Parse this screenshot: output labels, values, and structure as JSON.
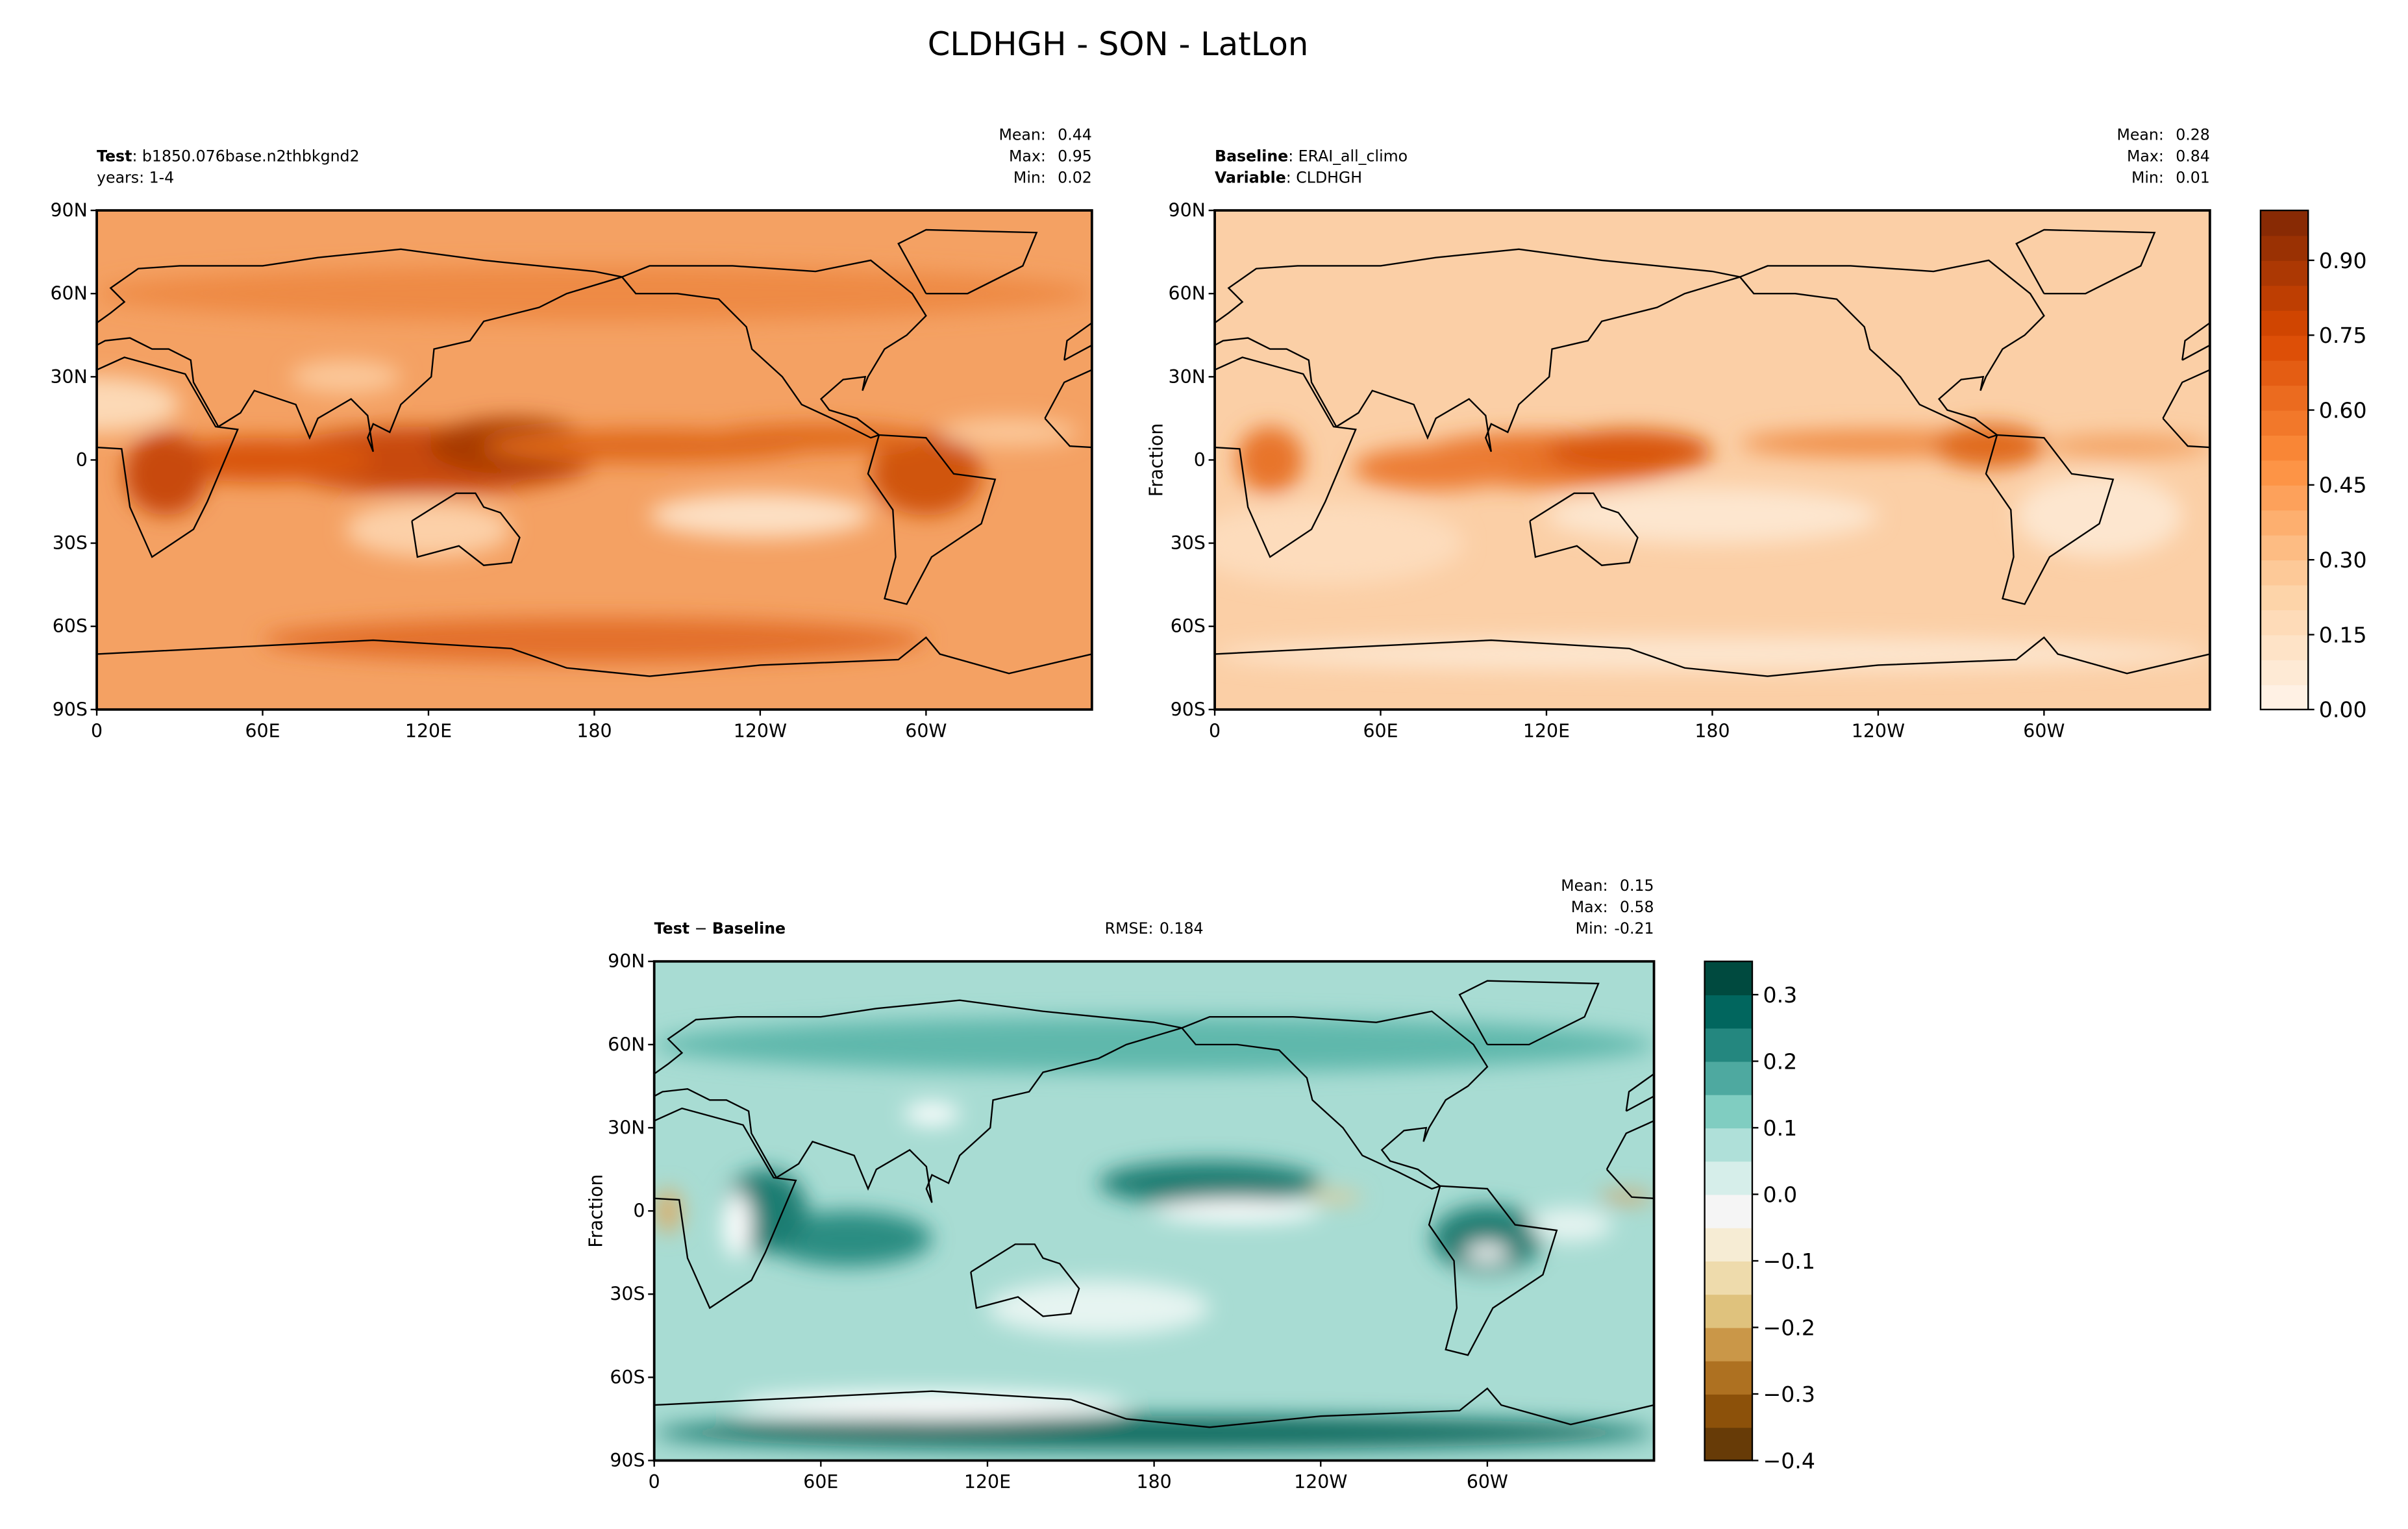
{
  "title": "CLDHGH - SON - LatLon",
  "panels": [
    {
      "header": [
        [
          {
            "text": "Test",
            "bold": true
          },
          {
            "text": ": b1850.076base.n2thbkgnd2"
          }
        ],
        [
          {
            "text": "years: 1-4"
          }
        ]
      ],
      "stats": [
        {
          "label": "Mean:",
          "value": 0.44
        },
        {
          "label": "Max:",
          "value": 0.95
        },
        {
          "label": "Min:",
          "value": 0.02
        }
      ],
      "xlim": [
        0,
        360
      ],
      "ylim": [
        -90,
        90
      ],
      "xticks": [
        0,
        {
          "value": 60,
          "label": "60E"
        },
        {
          "value": 120,
          "label": "120E"
        },
        180,
        {
          "value": 240,
          "label": "120W"
        },
        {
          "value": 300,
          "label": "60W"
        }
      ],
      "yticks": [
        {
          "value": -90,
          "label": "90S"
        },
        {
          "value": -60,
          "label": "60S"
        },
        {
          "value": -30,
          "label": "30S"
        },
        0,
        {
          "value": 30,
          "label": "30N"
        },
        {
          "value": 60,
          "label": "60N"
        },
        {
          "value": 90,
          "label": "90N"
        }
      ]
    },
    {
      "header": [
        [
          {
            "text": "Baseline",
            "bold": true
          },
          {
            "text": ": ERAI_all_climo"
          }
        ],
        [
          {
            "text": "Variable",
            "bold": true
          },
          {
            "text": ": CLDHGH"
          }
        ]
      ],
      "stats": [
        {
          "label": "Mean:",
          "value": 0.28
        },
        {
          "label": "Max:",
          "value": 0.84
        },
        {
          "label": "Min:",
          "value": 0.01
        }
      ],
      "ylabel": "Fraction",
      "xlim": [
        0,
        360
      ],
      "ylim": [
        -90,
        90
      ],
      "xticks": [
        0,
        {
          "value": 60,
          "label": "60E"
        },
        {
          "value": 120,
          "label": "120E"
        },
        180,
        {
          "value": 240,
          "label": "120W"
        },
        {
          "value": 300,
          "label": "60W"
        }
      ],
      "yticks": [
        {
          "value": -90,
          "label": "90S"
        },
        {
          "value": -60,
          "label": "60S"
        },
        {
          "value": -30,
          "label": "30S"
        },
        0,
        {
          "value": 30,
          "label": "30N"
        },
        {
          "value": 60,
          "label": "60N"
        },
        {
          "value": 90,
          "label": "90N"
        }
      ]
    },
    {
      "header": [
        [
          {
            "text": "Test",
            "bold": true
          },
          {
            "text": " − "
          },
          {
            "text": "Baseline",
            "bold": true
          }
        ]
      ],
      "rmse": {
        "label": "RMSE:",
        "value": 0.184
      },
      "stats": [
        {
          "label": "Mean:",
          "value": 0.15
        },
        {
          "label": "Max:",
          "value": 0.58
        },
        {
          "label": "Min:",
          "value": -0.21
        }
      ],
      "ylabel": "Fraction",
      "xlim": [
        0,
        360
      ],
      "ylim": [
        -90,
        90
      ],
      "xticks": [
        0,
        {
          "value": 60,
          "label": "60E"
        },
        {
          "value": 120,
          "label": "120E"
        },
        180,
        {
          "value": 240,
          "label": "120W"
        },
        {
          "value": 300,
          "label": "60W"
        }
      ],
      "yticks": [
        {
          "value": -90,
          "label": "90S"
        },
        {
          "value": -60,
          "label": "60S"
        },
        {
          "value": -30,
          "label": "30S"
        },
        0,
        {
          "value": 30,
          "label": "30N"
        },
        {
          "value": 60,
          "label": "60N"
        },
        {
          "value": 90,
          "label": "90N"
        }
      ]
    }
  ],
  "colorbars": [
    {
      "lim": [
        0,
        1
      ],
      "levels": 20,
      "colors": [
        "#fff5eb",
        "#fdd0a2",
        "#fd8d3c",
        "#d94801",
        "#7f2704"
      ],
      "ticks": [
        {
          "value": 0,
          "label": "0.00"
        },
        0.15,
        {
          "value": 0.3,
          "label": "0.30"
        },
        0.45,
        {
          "value": 0.6,
          "label": "0.60"
        },
        0.75,
        {
          "value": 0.9,
          "label": "0.90"
        }
      ]
    },
    {
      "lim": [
        -0.4,
        0.35
      ],
      "levels": 15,
      "colors": [
        "#543005",
        "#8c510a",
        "#bf812d",
        "#dfc27d",
        "#f6e8c3",
        "#f5f5f5",
        "#c7eae5",
        "#80cdc1",
        "#35978f",
        "#01665e",
        "#003c30"
      ],
      "ticks": [
        {
          "value": -0.4,
          "label": "−0.4"
        },
        {
          "value": -0.3,
          "label": "−0.3"
        },
        {
          "value": -0.2,
          "label": "−0.2"
        },
        {
          "value": -0.1,
          "label": "−0.1"
        },
        {
          "value": 0,
          "label": "0.0"
        },
        0.1,
        0.2,
        0.3
      ]
    }
  ]
}
